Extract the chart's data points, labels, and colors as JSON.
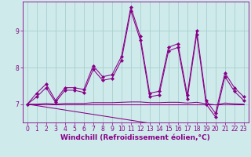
{
  "xlabel": "Windchill (Refroidissement éolien,°C)",
  "background_color": "#ceeaea",
  "grid_color": "#aacfcf",
  "line_color": "#880088",
  "x_values": [
    0,
    1,
    2,
    3,
    4,
    5,
    6,
    7,
    8,
    9,
    10,
    11,
    12,
    13,
    14,
    15,
    16,
    17,
    18,
    19,
    20,
    21,
    22,
    23
  ],
  "line1": [
    7.0,
    7.3,
    7.55,
    7.1,
    7.45,
    7.45,
    7.4,
    8.05,
    7.75,
    7.8,
    8.3,
    9.65,
    8.85,
    7.3,
    7.35,
    8.55,
    8.65,
    7.25,
    9.0,
    7.1,
    6.75,
    7.85,
    7.45,
    7.2
  ],
  "line2": [
    7.0,
    7.2,
    7.45,
    7.05,
    7.38,
    7.38,
    7.32,
    7.95,
    7.65,
    7.7,
    8.2,
    9.55,
    8.75,
    7.2,
    7.25,
    8.45,
    8.55,
    7.15,
    8.9,
    7.0,
    6.65,
    7.75,
    7.35,
    7.1
  ],
  "line3_flat": [
    7.0,
    7.0,
    7.0,
    7.0,
    7.0,
    7.0,
    7.0,
    7.0,
    7.0,
    7.0,
    7.0,
    7.0,
    7.0,
    7.0,
    7.0,
    7.0,
    7.0,
    7.0,
    7.0,
    7.0,
    7.0,
    7.0,
    7.0,
    7.0
  ],
  "line4_slight": [
    7.0,
    7.0,
    7.02,
    7.0,
    7.02,
    7.02,
    7.02,
    7.04,
    7.04,
    7.04,
    7.05,
    7.06,
    7.06,
    7.04,
    7.04,
    7.05,
    7.05,
    7.03,
    7.05,
    7.01,
    6.98,
    7.03,
    7.01,
    7.0
  ],
  "line5_decline": [
    7.0,
    6.96,
    6.92,
    6.88,
    6.84,
    6.8,
    6.76,
    6.72,
    6.68,
    6.64,
    6.6,
    6.56,
    6.52,
    6.48,
    6.44,
    6.4,
    6.36,
    6.32,
    6.28,
    6.24,
    6.2,
    6.16,
    6.12,
    6.08
  ],
  "ylim": [
    6.5,
    9.8
  ],
  "yticks": [
    7,
    8,
    9
  ],
  "xlim_min": -0.5,
  "xlim_max": 23.5,
  "xticks": [
    0,
    1,
    2,
    3,
    4,
    5,
    6,
    7,
    8,
    9,
    10,
    11,
    12,
    13,
    14,
    15,
    16,
    17,
    18,
    19,
    20,
    21,
    22,
    23
  ],
  "tick_fontsize": 5.5,
  "xlabel_fontsize": 6.5,
  "marker": "D",
  "markersize": 2.0,
  "linewidth": 0.75
}
